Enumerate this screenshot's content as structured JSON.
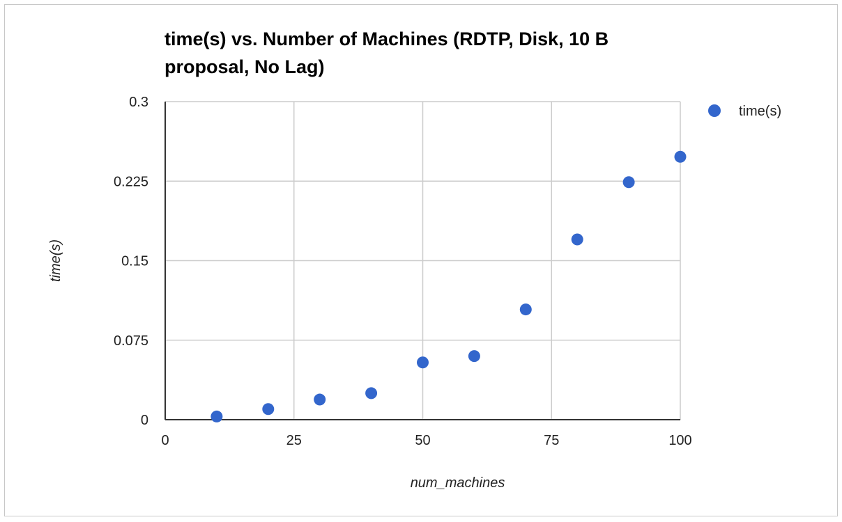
{
  "chart_data": {
    "type": "scatter",
    "title": "time(s) vs. Number of Machines (RDTP, Disk, 10 B proposal, No Lag)",
    "xlabel": "num_machines",
    "ylabel": "time(s)",
    "xlim": [
      0,
      100
    ],
    "ylim": [
      0,
      0.3
    ],
    "xticks": [
      "0",
      "25",
      "50",
      "75",
      "100"
    ],
    "yticks": [
      "0",
      "0.075",
      "0.15",
      "0.225",
      "0.3"
    ],
    "grid": true,
    "legend_position": "top-right",
    "series": [
      {
        "name": "time(s)",
        "color": "#3366cc",
        "x": [
          10,
          20,
          30,
          40,
          50,
          60,
          70,
          80,
          90,
          100
        ],
        "y": [
          0.003,
          0.01,
          0.019,
          0.025,
          0.054,
          0.06,
          0.104,
          0.17,
          0.224,
          0.248
        ]
      }
    ]
  }
}
